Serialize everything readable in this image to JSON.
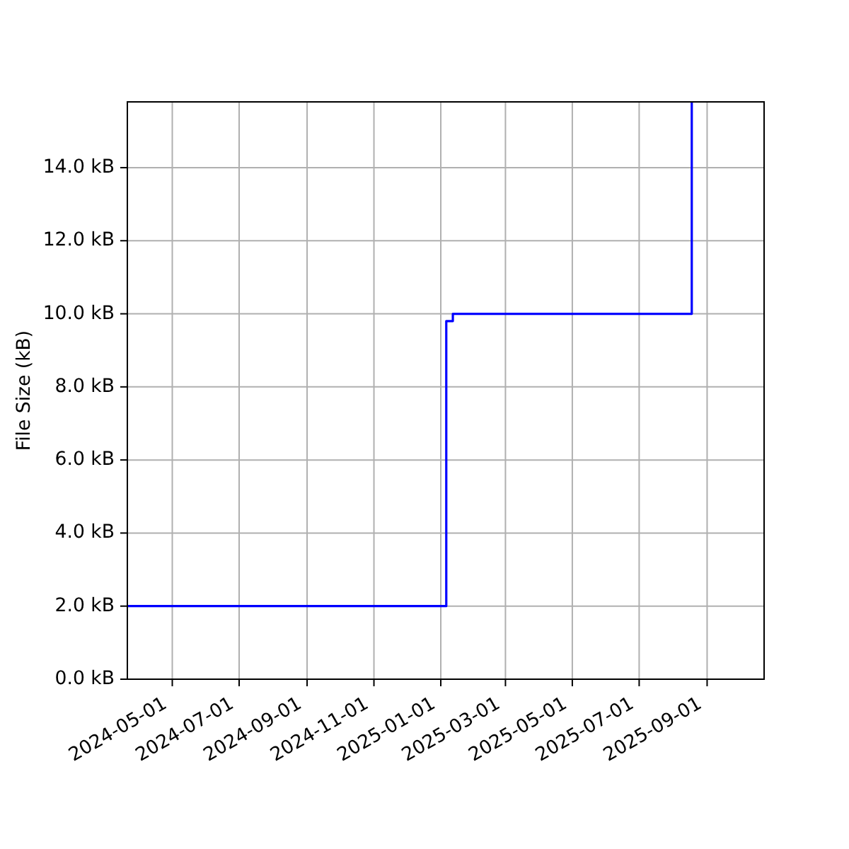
{
  "chart_data": {
    "type": "step",
    "ylabel": "File Size (kB)",
    "x": [
      "2024-03-21",
      "2025-01-06",
      "2025-01-12",
      "2025-08-18"
    ],
    "values": [
      2.0,
      9.8,
      10.0,
      15.8
    ],
    "color": "#0000ff",
    "xlim": [
      "2024-03-21",
      "2025-10-23"
    ],
    "xticks": [
      "2024-05-01",
      "2024-07-01",
      "2024-09-01",
      "2024-11-01",
      "2025-01-01",
      "2025-03-01",
      "2025-05-01",
      "2025-07-01",
      "2025-09-01"
    ],
    "ylim": [
      0,
      15.8
    ],
    "yticks": [
      {
        "value": 0,
        "label": "0.0 kB"
      },
      {
        "value": 2,
        "label": "2.0 kB"
      },
      {
        "value": 4,
        "label": "4.0 kB"
      },
      {
        "value": 6,
        "label": "6.0 kB"
      },
      {
        "value": 8,
        "label": "8.0 kB"
      },
      {
        "value": 10,
        "label": "10.0 kB"
      },
      {
        "value": 12,
        "label": "12.0 kB"
      },
      {
        "value": 14,
        "label": "14.0 kB"
      }
    ],
    "grid": true
  }
}
